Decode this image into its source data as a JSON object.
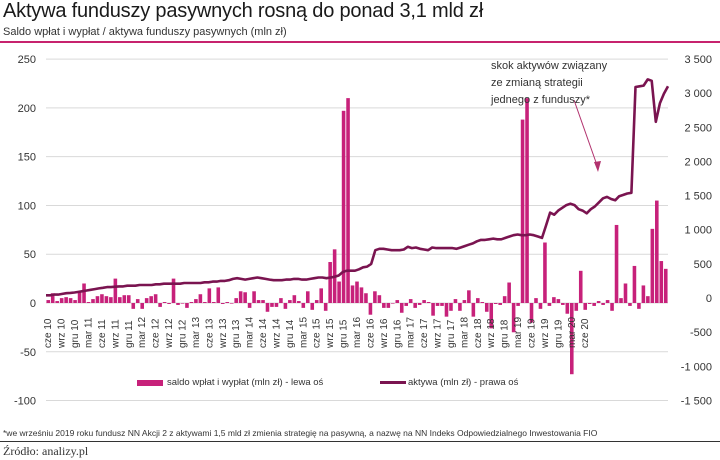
{
  "header": {
    "title": "Aktywa funduszy pasywnych rosną do ponad 3,1 mld zł",
    "subtitle": "Saldo wpłat i wypłat / aktywa funduszy pasywnych (mln zł)"
  },
  "annotation": {
    "line1": "skok aktywów związany",
    "line2": "ze zmianą strategii",
    "line3": "jednego z funduszy*"
  },
  "legend": {
    "bars_label": "saldo wpłat i wypłat (mln zł) - lewa oś",
    "line_label": "aktywa (mln zł) - prawa oś"
  },
  "footer": {
    "footnote": "*we wrześniu 2019 roku fundusz NN Akcji 2 z aktywami 1,5 mld zł zmienia strategię na pasywną, a nazwę na NN Indeks Odpowiedzialnego Inwestowania FIO",
    "source": "Źródło: analizy.pl"
  },
  "colors": {
    "bars": "#c7217a",
    "line": "#7a1450",
    "accent_rule": "#c7236e",
    "grid": "#d9d9d9"
  },
  "chart_data": {
    "type": "bar+line",
    "title": "Aktywa funduszy pasywnych rosną do ponad 3,1 mld zł",
    "subtitle": "Saldo wpłat i wypłat / aktywa funduszy pasywnych (mln zł)",
    "left_axis": {
      "label": "saldo wpłat i wypłat (mln zł)",
      "ticks": [
        250,
        200,
        150,
        100,
        50,
        0,
        -50,
        -100
      ],
      "ylim": [
        -100,
        250
      ]
    },
    "right_axis": {
      "label": "aktywa (mln zł)",
      "ticks": [
        "3 500",
        "3 000",
        "2 500",
        "2 000",
        "1 500",
        "1 000",
        "500",
        "0",
        "-500",
        "-1 000",
        "-1 500"
      ],
      "ylim": [
        -1500,
        3500
      ]
    },
    "x_tick_labels": [
      "cze 10",
      "wrz 10",
      "gru 10",
      "mar 11",
      "cze 11",
      "wrz 11",
      "gru 11",
      "mar 12",
      "cze 12",
      "wrz 12",
      "gru 12",
      "mar 13",
      "cze 13",
      "wrz 13",
      "gru 13",
      "mar 14",
      "cze 14",
      "wrz 14",
      "gru 14",
      "mar 15",
      "cze 15",
      "wrz 15",
      "gru 15",
      "mar 16",
      "cze 16",
      "wrz 16",
      "gru 16",
      "mar 17",
      "cze 17",
      "wrz 17",
      "gru 17",
      "mar 18",
      "cze 18",
      "wrz 18",
      "gru 18",
      "mar 19",
      "cze 19",
      "wrz 19",
      "gru 19",
      "mar 20",
      "cze 20"
    ],
    "grid": true,
    "legend_position": "bottom",
    "series": [
      {
        "name": "saldo wpłat i wypłat (mln zł) - lewa oś",
        "type": "bar",
        "axis": "left",
        "values": [
          3,
          10,
          2,
          5,
          6,
          5,
          3,
          12,
          20,
          1,
          4,
          7,
          9,
          7,
          6,
          25,
          6,
          8,
          8,
          -6,
          4,
          -6,
          5,
          7,
          9,
          -4,
          1,
          -1,
          25,
          -2,
          0,
          -5,
          1,
          4,
          9,
          1,
          15,
          1,
          16,
          -1,
          1,
          0,
          5,
          12,
          11,
          -5,
          12,
          3,
          3,
          -9,
          -4,
          -4,
          5,
          -6,
          3,
          8,
          2,
          -5,
          12,
          -7,
          3,
          15,
          -8,
          42,
          55,
          22,
          197,
          210,
          18,
          22,
          16,
          10,
          -12,
          12,
          8,
          -5,
          -5,
          0,
          3,
          -10,
          -3,
          4,
          -5,
          -2,
          3,
          1,
          -13,
          -3,
          -3,
          -14,
          -8,
          4,
          -8,
          3,
          13,
          -14,
          5,
          1,
          -9,
          -26,
          -1,
          -2,
          7,
          21,
          -30,
          -3,
          188,
          210,
          -20,
          5,
          -6,
          62,
          -3,
          6,
          4,
          -2,
          -11,
          -73,
          -8,
          33,
          -7,
          -1,
          -3,
          2,
          -2,
          3,
          -8,
          80,
          5,
          20,
          -3,
          38,
          -6,
          18,
          7,
          76,
          105,
          43,
          35
        ]
      },
      {
        "name": "aktywa (mln zł) - prawa oś",
        "type": "line",
        "axis": "right",
        "values": [
          40,
          40,
          50,
          50,
          60,
          70,
          75,
          80,
          90,
          100,
          110,
          120,
          130,
          140,
          150,
          160,
          160,
          165,
          170,
          170,
          180,
          180,
          180,
          190,
          190,
          190,
          190,
          200,
          200,
          210,
          210,
          210,
          210,
          210,
          220,
          220,
          220,
          220,
          220,
          230,
          230,
          240,
          240,
          250,
          250,
          260,
          280,
          290,
          280,
          270,
          280,
          290,
          300,
          290,
          280,
          270,
          260,
          260,
          260,
          270,
          270,
          280,
          280,
          270,
          270,
          280,
          290,
          300,
          300,
          290,
          300,
          310,
          330,
          380,
          400,
          400,
          400,
          420,
          450,
          460,
          500,
          700,
          720,
          720,
          710,
          700,
          700,
          700,
          710,
          750,
          730,
          740,
          720,
          710,
          700,
          740,
          730,
          730,
          730,
          730,
          730,
          720,
          740,
          760,
          780,
          800,
          830,
          850,
          850,
          860,
          870,
          860,
          860,
          880,
          900,
          920,
          930,
          920,
          920,
          930,
          920,
          900,
          880,
          1060,
          1250,
          1220,
          1280,
          1320,
          1360,
          1380,
          1360,
          1300,
          1280,
          1240,
          1300,
          1340,
          1400,
          1460,
          1480,
          1450,
          1430,
          1490,
          1510,
          1530,
          1540,
          3090,
          3100,
          3110,
          3200,
          3180,
          2580,
          2850,
          2990,
          3100
        ]
      }
    ]
  }
}
